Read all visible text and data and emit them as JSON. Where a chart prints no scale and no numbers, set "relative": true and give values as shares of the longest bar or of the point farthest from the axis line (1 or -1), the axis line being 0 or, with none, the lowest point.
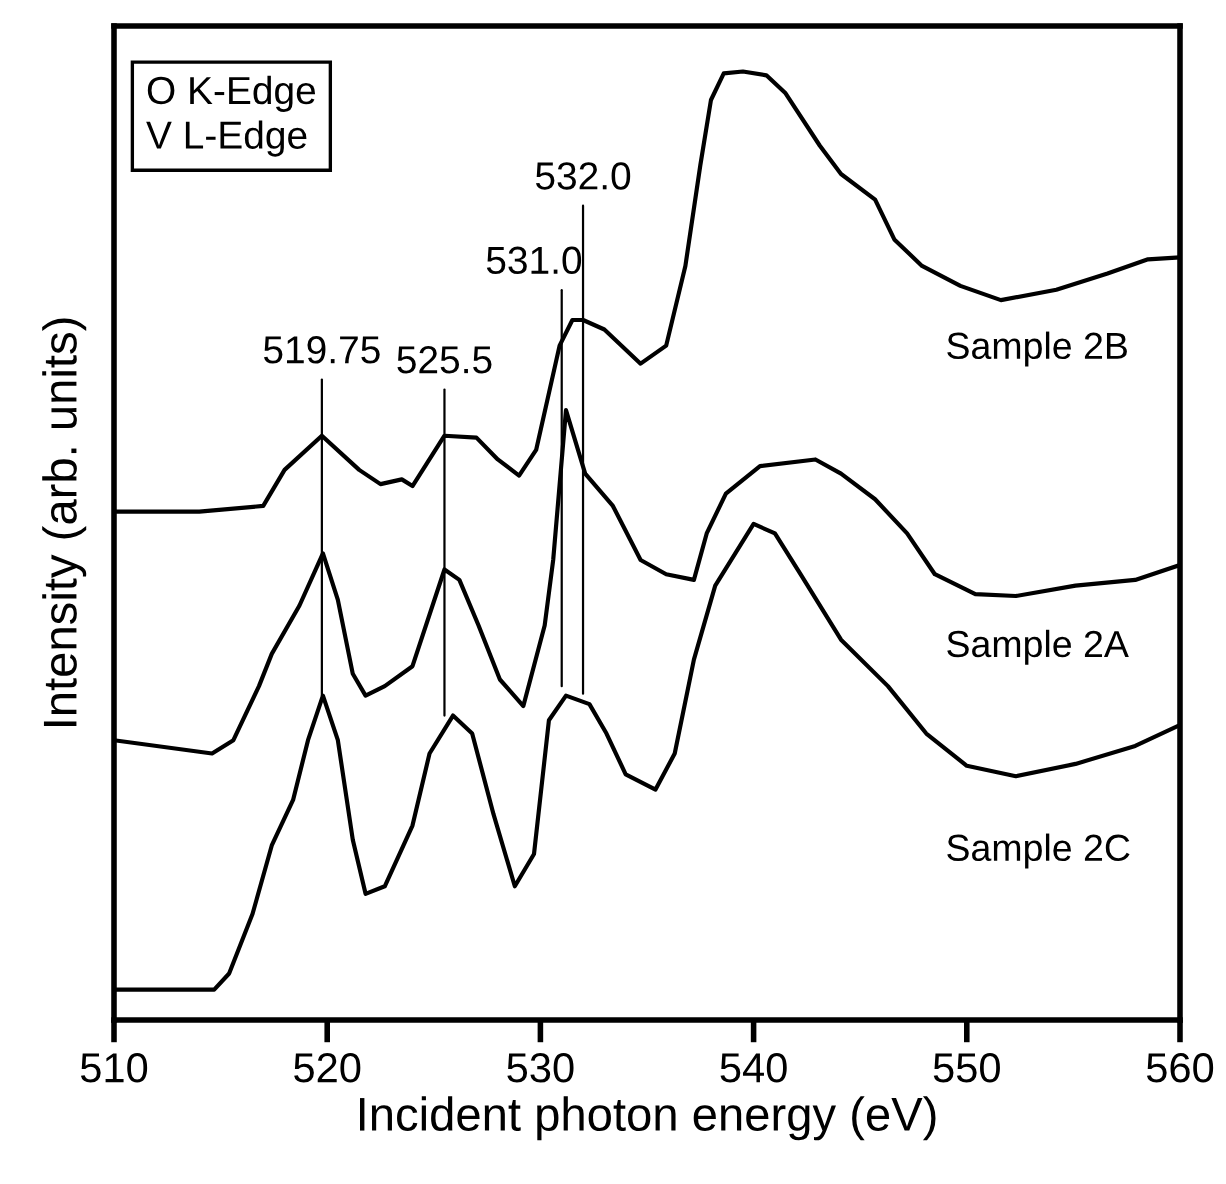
{
  "chart_data": {
    "type": "line",
    "relative": true,
    "xlabel": "Incident photon energy (eV)",
    "ylabel": "Intensity (arb. units)",
    "xlim": [
      510,
      560
    ],
    "xticks": [
      510,
      520,
      530,
      540,
      550,
      560
    ],
    "grid": false,
    "legend": false,
    "marker": "none",
    "line_style": "solid",
    "tick_labels": "x",
    "annotations": [
      "O K-Edge\nV L-Edge",
      {
        "text": "519.75",
        "x": 519.75,
        "y": 0.342
      },
      {
        "text": "525.5",
        "x": 525.5,
        "y": 0.321
      },
      {
        "text": "531.0",
        "x": 531.0,
        "y": 0.352
      },
      {
        "text": "532.0",
        "x": 532.0,
        "y": 0.344
      }
    ],
    "series": [
      {
        "name": "Sample 2B",
        "color": "#000000",
        "x": [
          510,
          514,
          517,
          518,
          519.75,
          521.5,
          522.5,
          523.5,
          524,
          525.5,
          527,
          528,
          529,
          529.8,
          530.9,
          531.5,
          532,
          533,
          534.7,
          535.9,
          536.8,
          537.5,
          538.0,
          538.6,
          539.5,
          540.6,
          541.5,
          543.1,
          544.1,
          545.7,
          546.6,
          547.9,
          549.7,
          551.6,
          554.2,
          556.6,
          558.5,
          559.9
        ],
        "values": [
          0.536,
          0.536,
          0.542,
          0.58,
          0.616,
          0.58,
          0.565,
          0.57,
          0.563,
          0.616,
          0.614,
          0.591,
          0.574,
          0.601,
          0.711,
          0.738,
          0.738,
          0.728,
          0.692,
          0.711,
          0.795,
          0.901,
          0.97,
          0.998,
          1.0,
          0.996,
          0.977,
          0.922,
          0.892,
          0.865,
          0.823,
          0.795,
          0.774,
          0.759,
          0.77,
          0.787,
          0.802,
          0.804
        ]
      },
      {
        "name": "Sample 2A",
        "color": "#000000",
        "x": [
          510,
          514.6,
          515.6,
          516.8,
          517.4,
          518.7,
          519.8,
          520.5,
          521.2,
          521.8,
          522.7,
          524.0,
          525.5,
          526.2,
          527.1,
          528.1,
          529.2,
          530.2,
          530.6,
          531.2,
          532.1,
          533.4,
          534.7,
          535.9,
          537.2,
          537.8,
          538.7,
          540.3,
          542.9,
          544.1,
          545.7,
          547.2,
          548.5,
          550.4,
          552.3,
          555.1,
          557.9,
          559.9
        ],
        "values": [
          0.295,
          0.281,
          0.295,
          0.352,
          0.386,
          0.437,
          0.492,
          0.443,
          0.365,
          0.342,
          0.352,
          0.373,
          0.475,
          0.464,
          0.416,
          0.359,
          0.331,
          0.416,
          0.485,
          0.643,
          0.576,
          0.542,
          0.485,
          0.47,
          0.464,
          0.513,
          0.555,
          0.584,
          0.591,
          0.576,
          0.549,
          0.513,
          0.47,
          0.449,
          0.447,
          0.458,
          0.464,
          0.479
        ]
      },
      {
        "name": "Sample 2C",
        "color": "#000000",
        "x": [
          510,
          514.7,
          515.4,
          516.5,
          517.4,
          518.4,
          519.1,
          519.8,
          520.5,
          521.2,
          521.8,
          522.7,
          524.0,
          524.8,
          525.9,
          526.8,
          527.8,
          528.8,
          529.7,
          530.4,
          531.2,
          532.3,
          533.1,
          534.0,
          535.4,
          536.3,
          537.2,
          538.2,
          540.0,
          541.0,
          542.2,
          544.1,
          546.3,
          548.1,
          550.0,
          552.3,
          555.1,
          557.9,
          559.9
        ],
        "values": [
          0.032,
          0.032,
          0.049,
          0.112,
          0.184,
          0.232,
          0.295,
          0.342,
          0.295,
          0.19,
          0.133,
          0.141,
          0.205,
          0.281,
          0.321,
          0.302,
          0.217,
          0.141,
          0.175,
          0.316,
          0.342,
          0.333,
          0.302,
          0.259,
          0.243,
          0.281,
          0.38,
          0.458,
          0.523,
          0.513,
          0.47,
          0.401,
          0.352,
          0.302,
          0.268,
          0.257,
          0.27,
          0.289,
          0.31
        ]
      }
    ]
  }
}
